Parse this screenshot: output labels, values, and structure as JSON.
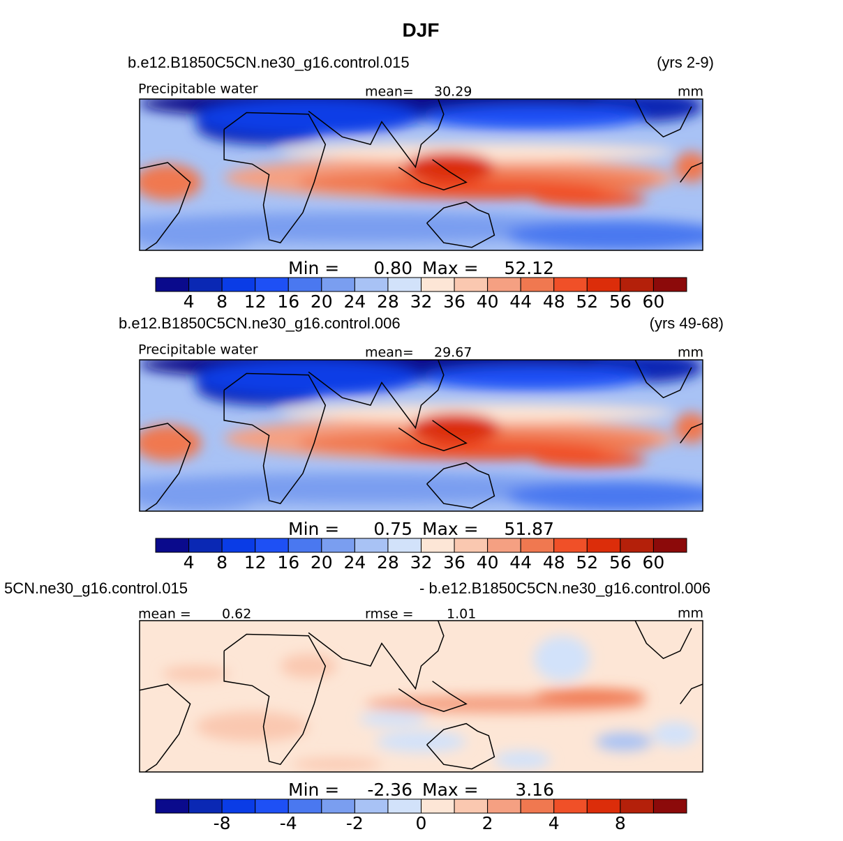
{
  "title": "DJF",
  "colors": [
    "#0a0a8c",
    "#0a28b4",
    "#0a3ce6",
    "#1e50f5",
    "#4a78f0",
    "#7a9ef0",
    "#a8c2f5",
    "#d2e2fa",
    "#fde6d6",
    "#fac8b0",
    "#f5a082",
    "#f07850",
    "#f05028",
    "#dc2d0a",
    "#b4200a",
    "#8c0a0a"
  ],
  "panels": [
    {
      "case": "b.e12.B1850C5CN.ne30_g16.control.015",
      "years": "(yrs 2-9)",
      "variable": "Precipitable water",
      "mean_label": "mean=",
      "mean": "30.29",
      "units": "mm",
      "min_label": "Min =",
      "min": "0.80",
      "max_label": "Max =",
      "max": "52.12",
      "levels": [
        4,
        8,
        12,
        16,
        20,
        24,
        28,
        32,
        36,
        40,
        44,
        48,
        52,
        56,
        60
      ]
    },
    {
      "case": "b.e12.B1850C5CN.ne30_g16.control.006",
      "years": "(yrs 49-68)",
      "variable": "Precipitable water",
      "mean_label": "mean=",
      "mean": "29.67",
      "units": "mm",
      "min_label": "Min =",
      "min": "0.75",
      "max_label": "Max =",
      "max": "51.87",
      "levels": [
        4,
        8,
        12,
        16,
        20,
        24,
        28,
        32,
        36,
        40,
        44,
        48,
        52,
        56,
        60
      ]
    },
    {
      "case": "5CN.ne30_g16.control.015",
      "case2": "- b.e12.B1850C5CN.ne30_g16.control.006",
      "mean_label": "mean =",
      "mean": "0.62",
      "rmse_label": "rmse =",
      "rmse": "1.01",
      "units": "mm",
      "min_label": "Min =",
      "min": "-2.36",
      "max_label": "Max =",
      "max": "3.16",
      "levels": [
        null,
        -8,
        null,
        -4,
        null,
        -2,
        null,
        0,
        null,
        2,
        null,
        4,
        null,
        8,
        null
      ]
    }
  ]
}
